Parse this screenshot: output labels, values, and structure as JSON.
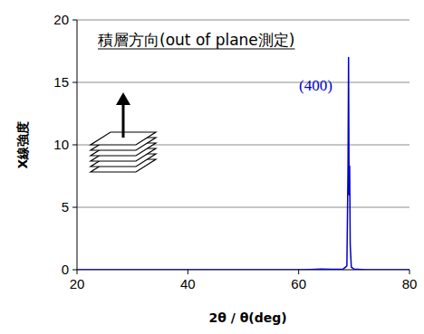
{
  "chart_data": {
    "type": "line",
    "x_label": "2θ / θ(deg)",
    "y_label": "X線強度",
    "annotations": [
      {
        "text": "積層方向(out of plane測定)"
      },
      {
        "text": "(400)"
      }
    ],
    "x": [
      20,
      40,
      60,
      62,
      64,
      66,
      68,
      68.7,
      68.9,
      69.0,
      69.1,
      69.2,
      69.3,
      69.5,
      70,
      72,
      80
    ],
    "series": [
      {
        "name": "(400)",
        "color": "#0000cc",
        "values": [
          0,
          0,
          0,
          0.02,
          0.05,
          0.03,
          0.05,
          0.3,
          8,
          17,
          6,
          8.3,
          2,
          0.2,
          0.05,
          0,
          0
        ]
      }
    ],
    "xlim": [
      20,
      80
    ],
    "xticks": [
      20,
      40,
      60,
      80
    ],
    "ylim": [
      0,
      20
    ],
    "yticks": [
      0,
      5,
      10,
      15,
      20
    ],
    "grid": true
  }
}
